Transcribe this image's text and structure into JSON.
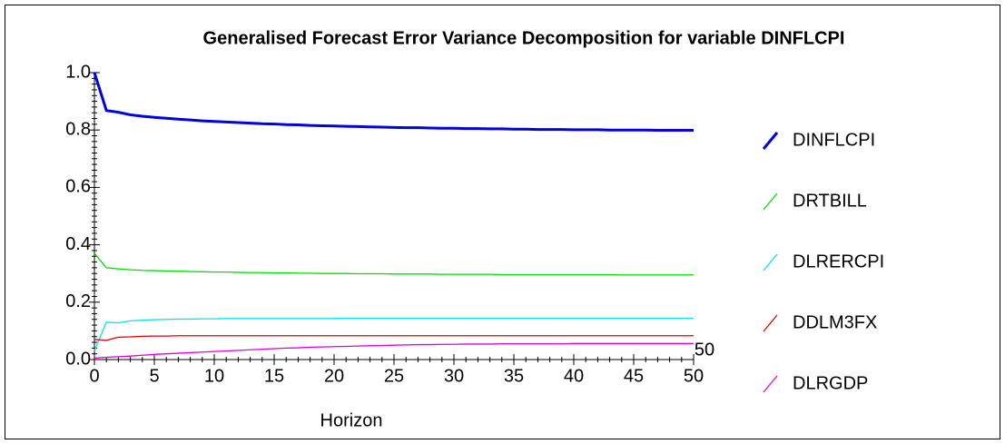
{
  "chart_data": {
    "type": "line",
    "title": "Generalised Forecast Error Variance Decomposition for variable DINFLCPI",
    "x_label": "Horizon",
    "x_axis_end_label": "50",
    "x": [
      0,
      1,
      2,
      3,
      4,
      5,
      6,
      7,
      8,
      9,
      10,
      11,
      12,
      13,
      14,
      15,
      16,
      17,
      18,
      19,
      20,
      21,
      22,
      23,
      24,
      25,
      26,
      27,
      28,
      29,
      30,
      31,
      32,
      33,
      34,
      35,
      36,
      37,
      38,
      39,
      40,
      41,
      42,
      43,
      44,
      45,
      46,
      47,
      48,
      49,
      50
    ],
    "xlim": [
      0,
      50
    ],
    "xticks": [
      0,
      5,
      10,
      15,
      20,
      25,
      30,
      35,
      40,
      45,
      50
    ],
    "ylim": [
      0,
      1
    ],
    "yticks": [
      {
        "value": 0,
        "label": "0.0"
      },
      0.2,
      0.4,
      0.6,
      0.8,
      {
        "value": 1,
        "label": "1.0"
      }
    ],
    "series": [
      {
        "name": "DINFLCPI",
        "color": "#0000e0",
        "values": [
          1.0,
          0.868,
          0.862,
          0.853,
          0.848,
          0.844,
          0.841,
          0.838,
          0.835,
          0.832,
          0.83,
          0.828,
          0.826,
          0.824,
          0.822,
          0.821,
          0.819,
          0.818,
          0.816,
          0.815,
          0.814,
          0.813,
          0.812,
          0.811,
          0.81,
          0.809,
          0.808,
          0.808,
          0.807,
          0.806,
          0.806,
          0.805,
          0.805,
          0.804,
          0.804,
          0.803,
          0.803,
          0.802,
          0.802,
          0.802,
          0.801,
          0.801,
          0.801,
          0.8,
          0.8,
          0.8,
          0.8,
          0.799,
          0.799,
          0.799,
          0.799
        ]
      },
      {
        "name": "DRTBILL",
        "color": "#00e000",
        "values": [
          0.37,
          0.32,
          0.316,
          0.313,
          0.311,
          0.31,
          0.309,
          0.308,
          0.307,
          0.306,
          0.305,
          0.305,
          0.304,
          0.303,
          0.303,
          0.302,
          0.302,
          0.301,
          0.301,
          0.3,
          0.3,
          0.3,
          0.299,
          0.299,
          0.299,
          0.298,
          0.298,
          0.298,
          0.298,
          0.297,
          0.297,
          0.297,
          0.297,
          0.297,
          0.296,
          0.296,
          0.296,
          0.296,
          0.296,
          0.296,
          0.296,
          0.296,
          0.296,
          0.296,
          0.295,
          0.295,
          0.295,
          0.295,
          0.295,
          0.295,
          0.295
        ]
      },
      {
        "name": "DLRERCPI",
        "color": "#00e8e8",
        "values": [
          0.03,
          0.13,
          0.128,
          0.135,
          0.137,
          0.139,
          0.14,
          0.141,
          0.141,
          0.142,
          0.142,
          0.143,
          0.143,
          0.143,
          0.143,
          0.143,
          0.143,
          0.143,
          0.143,
          0.143,
          0.143,
          0.144,
          0.144,
          0.144,
          0.144,
          0.144,
          0.144,
          0.144,
          0.144,
          0.144,
          0.144,
          0.144,
          0.144,
          0.144,
          0.144,
          0.144,
          0.144,
          0.144,
          0.144,
          0.144,
          0.144,
          0.144,
          0.144,
          0.144,
          0.144,
          0.144,
          0.144,
          0.144,
          0.144,
          0.144,
          0.144
        ]
      },
      {
        "name": "DDLM3FX",
        "color": "#e00000",
        "values": [
          0.07,
          0.067,
          0.078,
          0.079,
          0.081,
          0.082,
          0.082,
          0.083,
          0.083,
          0.083,
          0.083,
          0.083,
          0.083,
          0.083,
          0.083,
          0.083,
          0.083,
          0.083,
          0.083,
          0.083,
          0.083,
          0.083,
          0.083,
          0.083,
          0.083,
          0.083,
          0.083,
          0.083,
          0.083,
          0.083,
          0.083,
          0.083,
          0.083,
          0.083,
          0.083,
          0.083,
          0.083,
          0.083,
          0.083,
          0.083,
          0.083,
          0.083,
          0.083,
          0.083,
          0.083,
          0.083,
          0.083,
          0.083,
          0.083,
          0.083,
          0.083
        ]
      },
      {
        "name": "DLRGDP",
        "color": "#e000e0",
        "values": [
          0.005,
          0.008,
          0.01,
          0.012,
          0.015,
          0.018,
          0.02,
          0.022,
          0.024,
          0.026,
          0.028,
          0.03,
          0.032,
          0.034,
          0.036,
          0.038,
          0.04,
          0.041,
          0.043,
          0.044,
          0.045,
          0.046,
          0.047,
          0.048,
          0.049,
          0.05,
          0.051,
          0.052,
          0.052,
          0.053,
          0.053,
          0.054,
          0.054,
          0.054,
          0.055,
          0.055,
          0.055,
          0.055,
          0.055,
          0.055,
          0.056,
          0.056,
          0.056,
          0.056,
          0.056,
          0.056,
          0.056,
          0.056,
          0.056,
          0.056,
          0.056
        ]
      }
    ]
  }
}
